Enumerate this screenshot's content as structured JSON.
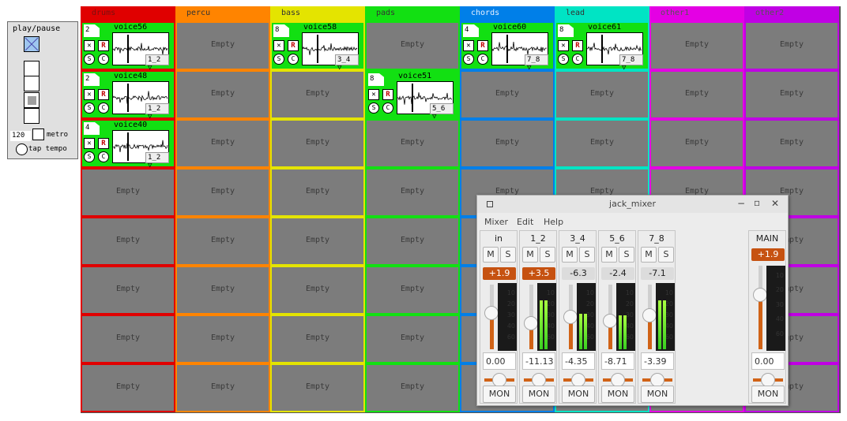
{
  "transport": {
    "title": "play/pause",
    "bpm": "120",
    "metro_label": "metro",
    "tap_label": "tap tempo"
  },
  "columns": [
    {
      "label": "drums",
      "color": "#e00000",
      "header_text": "#7a1010"
    },
    {
      "label": "percu",
      "color": "#ff8400",
      "header_text": "#333333"
    },
    {
      "label": "bass",
      "color": "#e4e400",
      "header_text": "#333333"
    },
    {
      "label": "pads",
      "color": "#12e012",
      "header_text": "#333333"
    },
    {
      "label": "chords",
      "color": "#007fe8",
      "header_text": "#e6f0ff"
    },
    {
      "label": "lead",
      "color": "#00e4c4",
      "header_text": "#333333"
    },
    {
      "label": "other1",
      "color": "#e400e4",
      "header_text": "#555555"
    },
    {
      "label": "other2",
      "color": "#c000e4",
      "header_text": "#555555"
    }
  ],
  "empty_label": "Empty",
  "clips": [
    {
      "col": 0,
      "row": 0,
      "count": "2",
      "name": "voice56",
      "out": "1_2"
    },
    {
      "col": 0,
      "row": 1,
      "count": "2",
      "name": "voice48",
      "out": "1_2"
    },
    {
      "col": 0,
      "row": 2,
      "count": "4",
      "name": "voice40",
      "out": "1_2"
    },
    {
      "col": 2,
      "row": 0,
      "count": "8",
      "name": "voice58",
      "out": "3_4"
    },
    {
      "col": 3,
      "row": 1,
      "count": "8",
      "name": "voice51",
      "out": "5_6"
    },
    {
      "col": 4,
      "row": 0,
      "count": "4",
      "name": "voice60",
      "out": "7_8"
    },
    {
      "col": 5,
      "row": 0,
      "count": "8",
      "name": "voice61",
      "out": "7_8"
    }
  ],
  "clip_buttons": {
    "record": "R",
    "solo": "S",
    "clear": "C"
  },
  "mixer": {
    "title": "jack_mixer",
    "menus": [
      "Mixer",
      "Edit",
      "Help"
    ],
    "mute_label": "M",
    "solo_label": "S",
    "monitor_label": "MON",
    "meter_ticks": [
      "10",
      "20",
      "30",
      "40",
      "60"
    ],
    "channels": [
      {
        "name": "in",
        "gain": "+1.9",
        "hot": true,
        "volume": "0.00",
        "level": 0.56,
        "meter": [
          0,
          0
        ]
      },
      {
        "name": "1_2",
        "gain": "+3.5",
        "hot": true,
        "volume": "-11.13",
        "level": 0.4,
        "meter": [
          0.75,
          0.75
        ]
      },
      {
        "name": "3_4",
        "gain": "-6.3",
        "hot": false,
        "volume": "-4.35",
        "level": 0.5,
        "meter": [
          0.55,
          0.55
        ]
      },
      {
        "name": "5_6",
        "gain": "-2.4",
        "hot": false,
        "volume": "-8.71",
        "level": 0.44,
        "meter": [
          0.52,
          0.52
        ]
      },
      {
        "name": "7_8",
        "gain": "-7.1",
        "hot": false,
        "volume": "-3.39",
        "level": 0.52,
        "meter": [
          0.75,
          0.75
        ]
      }
    ],
    "main": {
      "name": "MAIN",
      "gain": "+1.9",
      "volume": "0.00",
      "level": 0.65
    }
  }
}
